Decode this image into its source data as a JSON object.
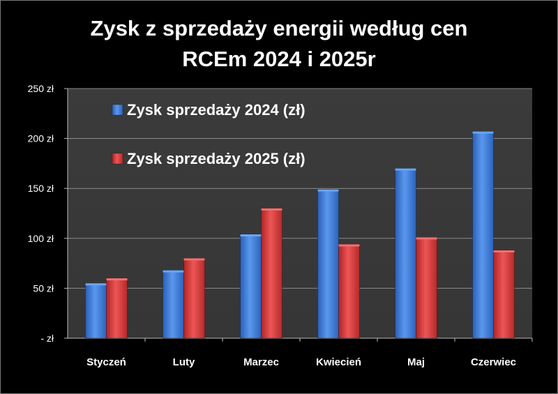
{
  "chart_data": {
    "type": "bar",
    "title": "Zysk z sprzedaży energii według cen\nRCEm 2024 i 2025r",
    "categories": [
      "Styczeń",
      "Luty",
      "Marzec",
      "Kwiecień",
      "Maj",
      "Czerwiec"
    ],
    "series": [
      {
        "name": "Zysk sprzedaży 2024 (zł)",
        "values": [
          55,
          68,
          104,
          149,
          170,
          207
        ],
        "color": "#3f7fe0"
      },
      {
        "name": "Zysk sprzedaży 2025 (zł)",
        "values": [
          60,
          80,
          130,
          94,
          101,
          88
        ],
        "color": "#e03a3a"
      }
    ],
    "ylim": [
      0,
      250
    ],
    "yticks": [
      0,
      50,
      100,
      150,
      200,
      250
    ],
    "ytick_labels": [
      "-  zł",
      "50 zł",
      "100 zł",
      "150 zł",
      "200 zł",
      "250 zł"
    ],
    "grid": true,
    "legend_position": "top-left",
    "background": "#000000",
    "plot_background": "#3a3a3a"
  }
}
